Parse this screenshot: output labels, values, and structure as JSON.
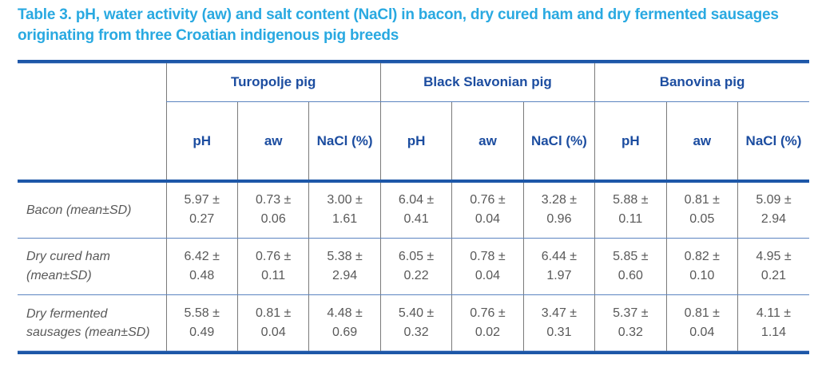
{
  "title": "Table 3. pH, water activity (aw) and salt content (NaCl) in bacon, dry cured ham and dry fermented sausages originating from three Croatian indigenous pig breeds",
  "colors": {
    "title_text": "#29A9E1",
    "header_text": "#1C4DA0",
    "thick_rule": "#1D57A8",
    "thin_rule": "#5B84C0",
    "grid_line": "#7A7A7A",
    "body_text": "#595959",
    "background": "#FFFFFF"
  },
  "table": {
    "plus_minus": "±",
    "groups": [
      {
        "label": "Turopolje pig"
      },
      {
        "label": "Black Slavonian pig"
      },
      {
        "label": "Banovina pig"
      }
    ],
    "measures": [
      "pH",
      "aw",
      "NaCl (%)"
    ],
    "rows": [
      {
        "label": "Bacon (mean±SD)",
        "cells": [
          {
            "mean": "5.97",
            "sd": "0.27"
          },
          {
            "mean": "0.73",
            "sd": "0.06"
          },
          {
            "mean": "3.00",
            "sd": "1.61"
          },
          {
            "mean": "6.04",
            "sd": "0.41"
          },
          {
            "mean": "0.76",
            "sd": "0.04"
          },
          {
            "mean": "3.28",
            "sd": "0.96"
          },
          {
            "mean": "5.88",
            "sd": "0.11"
          },
          {
            "mean": "0.81",
            "sd": "0.05"
          },
          {
            "mean": "5.09",
            "sd": "2.94"
          }
        ]
      },
      {
        "label": "Dry cured ham (mean±SD)",
        "cells": [
          {
            "mean": "6.42",
            "sd": "0.48"
          },
          {
            "mean": "0.76",
            "sd": "0.11"
          },
          {
            "mean": "5.38",
            "sd": "2.94"
          },
          {
            "mean": "6.05",
            "sd": "0.22"
          },
          {
            "mean": "0.78",
            "sd": "0.04"
          },
          {
            "mean": "6.44",
            "sd": "1.97"
          },
          {
            "mean": "5.85",
            "sd": "0.60"
          },
          {
            "mean": "0.82",
            "sd": "0.10"
          },
          {
            "mean": "4.95",
            "sd": "0.21"
          }
        ]
      },
      {
        "label": "Dry fermented sausages (mean±SD)",
        "cells": [
          {
            "mean": "5.58",
            "sd": "0.49"
          },
          {
            "mean": "0.81",
            "sd": "0.04"
          },
          {
            "mean": "4.48",
            "sd": "0.69"
          },
          {
            "mean": "5.40",
            "sd": "0.32"
          },
          {
            "mean": "0.76",
            "sd": "0.02"
          },
          {
            "mean": "3.47",
            "sd": "0.31"
          },
          {
            "mean": "5.37",
            "sd": "0.32"
          },
          {
            "mean": "0.81",
            "sd": "0.04"
          },
          {
            "mean": "4.11",
            "sd": "1.14"
          }
        ]
      }
    ]
  }
}
